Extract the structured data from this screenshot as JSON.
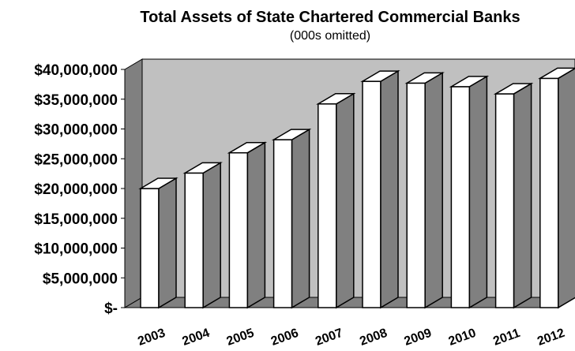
{
  "chart_data": {
    "type": "bar",
    "title": "Total Assets of State Chartered Commercial Banks",
    "subtitle": "(000s omitted)",
    "xlabel": "",
    "ylabel": "",
    "categories": [
      "2003",
      "2004",
      "2005",
      "2006",
      "2007",
      "2008",
      "2009",
      "2010",
      "2011",
      "2012"
    ],
    "values": [
      20000000,
      22600000,
      26000000,
      28200000,
      34200000,
      38000000,
      37700000,
      37100000,
      35900000,
      38500000
    ],
    "ylim": [
      0,
      40000000
    ],
    "yticks": [
      0,
      5000000,
      10000000,
      15000000,
      20000000,
      25000000,
      30000000,
      35000000,
      40000000
    ],
    "ytick_labels": [
      "$-",
      "$5,000,000",
      "$10,000,000",
      "$15,000,000",
      "$20,000,000",
      "$25,000,000",
      "$30,000,000",
      "$35,000,000",
      "$40,000,000"
    ],
    "grid": false,
    "legend": "none",
    "style": "3d-column",
    "colors": {
      "bar_face": "#ffffff",
      "bar_top": "#ffffff",
      "bar_side": "#808080",
      "back_wall": "#c0c0c0",
      "side_wall": "#808080",
      "floor": "#808080",
      "outline": "#000000"
    }
  }
}
